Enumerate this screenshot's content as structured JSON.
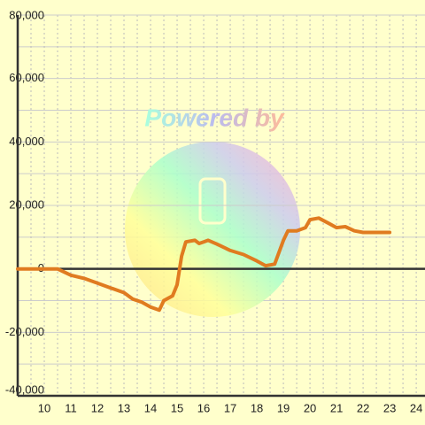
{
  "chart_data": {
    "type": "line",
    "watermark": "Powered by",
    "x": [
      9,
      10.5,
      11,
      11.5,
      12,
      12.5,
      13,
      13.33,
      13.67,
      14,
      14.33,
      14.5,
      14.83,
      15,
      15.17,
      15.33,
      15.67,
      15.83,
      16,
      16.17,
      16.5,
      17,
      17.5,
      18,
      18.33,
      18.67,
      19,
      19.17,
      19.5,
      19.83,
      20,
      20.33,
      20.67,
      21,
      21.33,
      21.67,
      22,
      23
    ],
    "series": [
      {
        "color": "#e07b20",
        "values": [
          0,
          0,
          -2000,
          -3000,
          -4500,
          -6000,
          -7500,
          -9500,
          -10500,
          -12000,
          -13000,
          -10000,
          -8500,
          -5000,
          4000,
          8500,
          9000,
          8000,
          8500,
          9000,
          7800,
          5800,
          4500,
          2500,
          1000,
          1500,
          9000,
          12000,
          12000,
          13000,
          15500,
          16000,
          14500,
          13000,
          13300,
          12000,
          11500,
          11500
        ]
      }
    ],
    "xlim": [
      9,
      24.33
    ],
    "ylim": [
      -40000,
      80000
    ],
    "xticks": [
      10,
      11,
      12,
      13,
      14,
      15,
      16,
      17,
      18,
      19,
      20,
      21,
      22,
      23,
      24
    ],
    "yticks": [
      {
        "value": 80000,
        "label": "80,000"
      },
      {
        "value": 60000,
        "label": "60,000"
      },
      {
        "value": 40000,
        "label": "40,000"
      },
      {
        "value": 20000,
        "label": "20,000"
      },
      0,
      {
        "value": -20000,
        "label": "-20,000"
      },
      {
        "value": -40000,
        "label": "-40,000"
      }
    ],
    "minor_yticks": [
      70000,
      50000,
      30000,
      10000,
      -10000,
      -30000
    ],
    "minor_xticks": [
      9.5,
      10.5,
      11.5,
      12.5,
      13.5,
      14.5,
      15.5,
      16.5,
      17.5,
      18.5,
      19.5,
      20.5,
      21.5,
      22.5,
      23.5
    ],
    "grid": true
  }
}
